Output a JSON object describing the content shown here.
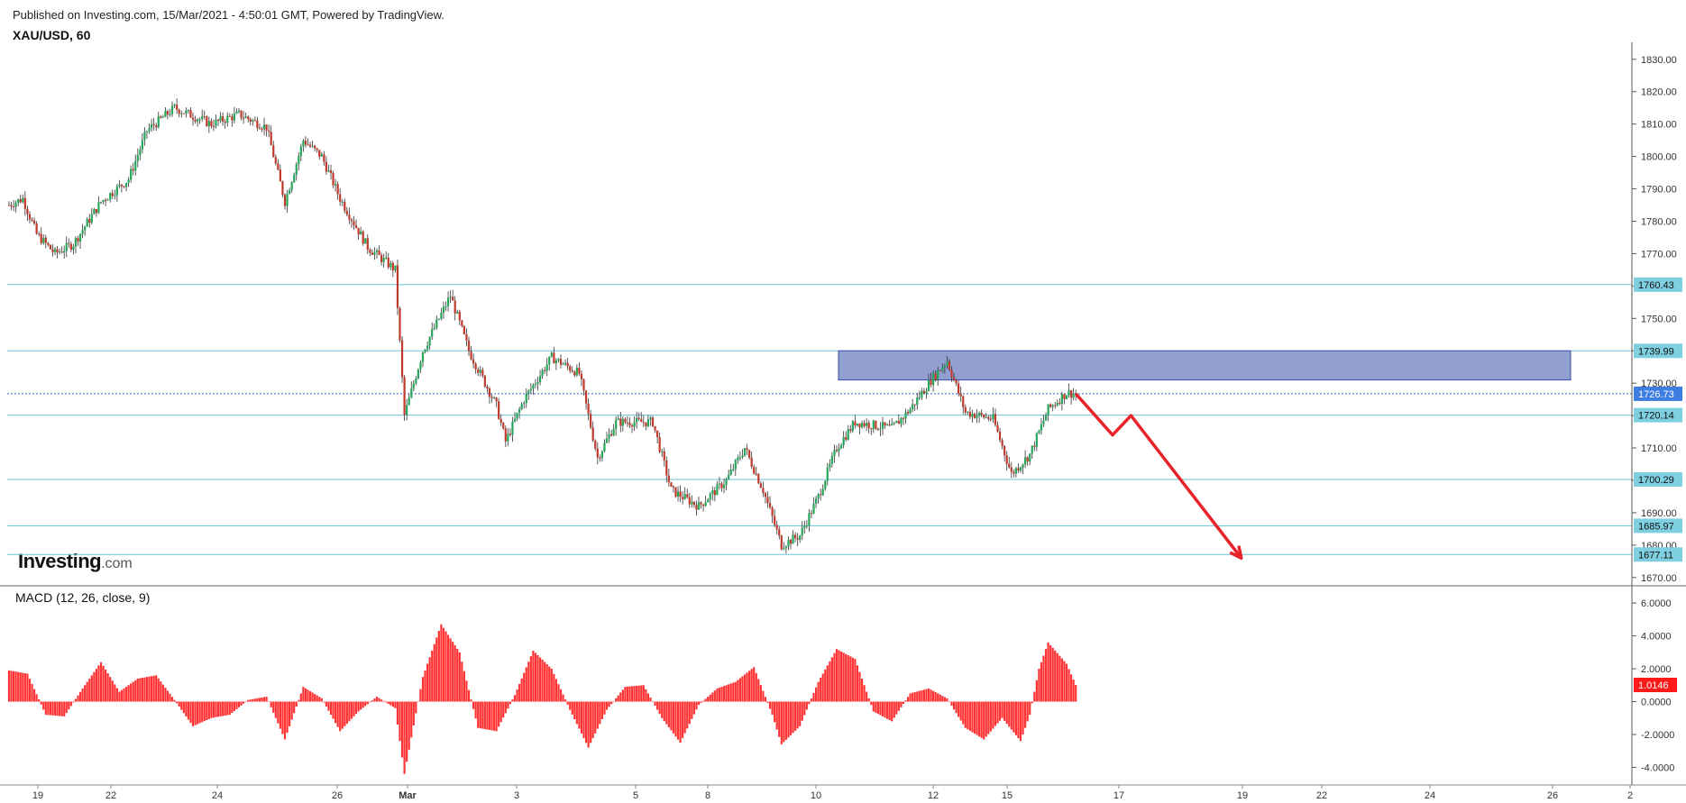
{
  "header": {
    "published": "Published on Investing.com, 15/Mar/2021 - 4:50:01 GMT, Powered by TradingView.",
    "symbol": "XAU/USD, 60"
  },
  "logo": {
    "main": "Investing",
    "suffix": ".com"
  },
  "macd_label": "MACD (12, 26, close, 9)",
  "colors": {
    "up": "#26a65b",
    "down": "#c0392b",
    "level_line": "#6cc3d5",
    "level_tag": "#7ecfe0",
    "current_tag": "#3d7ee0",
    "zone_fill": "#7f8fc9",
    "arrow": "#e8232a",
    "histogram": "#ff3333"
  },
  "chart_data": [
    {
      "type": "candlestick",
      "title": "XAU/USD, 60",
      "y_axis_ticks": [
        "1830.00",
        "1820.00",
        "1810.00",
        "1800.00",
        "1790.00",
        "1780.00",
        "1770.00",
        "1760.00",
        "1750.00",
        "1740.00",
        "1730.00",
        "1720.00",
        "1710.00",
        "1700.00",
        "1690.00",
        "1680.00",
        "1670.00"
      ],
      "x_axis_ticks": [
        "19",
        "22",
        "24",
        "26",
        "Mar",
        "3",
        "5",
        "8",
        "10",
        "12",
        "15",
        "17",
        "19",
        "22",
        "24",
        "26",
        "2"
      ],
      "ylim": [
        1668,
        1833
      ],
      "price_path": [
        {
          "x": 0,
          "y": 1785
        },
        {
          "x": 1.5,
          "y": 1787
        },
        {
          "x": 3,
          "y": 1776
        },
        {
          "x": 5,
          "y": 1770
        },
        {
          "x": 7,
          "y": 1773
        },
        {
          "x": 10,
          "y": 1786
        },
        {
          "x": 13,
          "y": 1793
        },
        {
          "x": 15,
          "y": 1808
        },
        {
          "x": 18,
          "y": 1815
        },
        {
          "x": 22,
          "y": 1810
        },
        {
          "x": 25,
          "y": 1813
        },
        {
          "x": 28,
          "y": 1809
        },
        {
          "x": 30,
          "y": 1786
        },
        {
          "x": 32,
          "y": 1805
        },
        {
          "x": 34,
          "y": 1800
        },
        {
          "x": 36,
          "y": 1787
        },
        {
          "x": 39,
          "y": 1772
        },
        {
          "x": 42,
          "y": 1765
        },
        {
          "x": 43,
          "y": 1720
        },
        {
          "x": 45,
          "y": 1740
        },
        {
          "x": 48,
          "y": 1757
        },
        {
          "x": 50,
          "y": 1740
        },
        {
          "x": 53,
          "y": 1723
        },
        {
          "x": 54,
          "y": 1712
        },
        {
          "x": 56,
          "y": 1725
        },
        {
          "x": 59,
          "y": 1738
        },
        {
          "x": 62,
          "y": 1733
        },
        {
          "x": 64,
          "y": 1707
        },
        {
          "x": 66,
          "y": 1718
        },
        {
          "x": 70,
          "y": 1718
        },
        {
          "x": 72,
          "y": 1697
        },
        {
          "x": 75,
          "y": 1692
        },
        {
          "x": 78,
          "y": 1700
        },
        {
          "x": 80,
          "y": 1710
        },
        {
          "x": 82,
          "y": 1697
        },
        {
          "x": 84,
          "y": 1680
        },
        {
          "x": 86,
          "y": 1683
        },
        {
          "x": 88,
          "y": 1695
        },
        {
          "x": 90,
          "y": 1710
        },
        {
          "x": 92,
          "y": 1718
        },
        {
          "x": 96,
          "y": 1716
        },
        {
          "x": 98,
          "y": 1722
        },
        {
          "x": 100,
          "y": 1730
        },
        {
          "x": 102,
          "y": 1737
        },
        {
          "x": 104,
          "y": 1721
        },
        {
          "x": 107,
          "y": 1719
        },
        {
          "x": 109,
          "y": 1702
        },
        {
          "x": 111,
          "y": 1708
        },
        {
          "x": 113,
          "y": 1722
        },
        {
          "x": 115,
          "y": 1727
        },
        {
          "x": 116,
          "y": 1726.73
        }
      ],
      "levels": [
        {
          "value": 1760.43,
          "label": "1760.43"
        },
        {
          "value": 1739.99,
          "label": "1739.99"
        },
        {
          "value": 1720.14,
          "label": "1720.14"
        },
        {
          "value": 1700.29,
          "label": "1700.29"
        },
        {
          "value": 1685.97,
          "label": "1685.97"
        },
        {
          "value": 1677.11,
          "label": "1677.11"
        }
      ],
      "current_price": {
        "value": 1726.73,
        "label": "1726.73"
      },
      "resistance_zone": {
        "from": 1731,
        "to": 1740
      },
      "projection_path": [
        {
          "x": 116,
          "y": 1726.73
        },
        {
          "x": 120,
          "y": 1714
        },
        {
          "x": 122,
          "y": 1720
        },
        {
          "x": 134,
          "y": 1676
        }
      ]
    },
    {
      "type": "bar",
      "title": "MACD (12, 26, close, 9)",
      "y_axis_ticks": [
        "6.0000",
        "4.0000",
        "2.0000",
        "0.0000",
        "-2.0000",
        "-4.0000"
      ],
      "ylim": [
        -4.8,
        6.5
      ],
      "current_value": {
        "value": 1.0146,
        "label": "1.0146"
      },
      "histogram_path": [
        {
          "x": 0,
          "y": 1.9
        },
        {
          "x": 2,
          "y": 1.7
        },
        {
          "x": 4,
          "y": -0.8
        },
        {
          "x": 6,
          "y": -0.9
        },
        {
          "x": 8,
          "y": 0.8
        },
        {
          "x": 10,
          "y": 2.4
        },
        {
          "x": 12,
          "y": 0.6
        },
        {
          "x": 14,
          "y": 1.4
        },
        {
          "x": 16,
          "y": 1.6
        },
        {
          "x": 18,
          "y": 0.1
        },
        {
          "x": 20,
          "y": -1.5
        },
        {
          "x": 22,
          "y": -1.0
        },
        {
          "x": 24,
          "y": -0.8
        },
        {
          "x": 26,
          "y": 0.1
        },
        {
          "x": 28,
          "y": 0.3
        },
        {
          "x": 30,
          "y": -2.3
        },
        {
          "x": 32,
          "y": 0.9
        },
        {
          "x": 34,
          "y": 0.2
        },
        {
          "x": 36,
          "y": -1.8
        },
        {
          "x": 38,
          "y": -0.6
        },
        {
          "x": 40,
          "y": 0.3
        },
        {
          "x": 42,
          "y": -0.4
        },
        {
          "x": 43,
          "y": -4.4
        },
        {
          "x": 45,
          "y": 1.5
        },
        {
          "x": 47,
          "y": 4.7
        },
        {
          "x": 49,
          "y": 3.0
        },
        {
          "x": 51,
          "y": -1.6
        },
        {
          "x": 53,
          "y": -1.8
        },
        {
          "x": 55,
          "y": 0.4
        },
        {
          "x": 57,
          "y": 3.1
        },
        {
          "x": 59,
          "y": 2.0
        },
        {
          "x": 61,
          "y": -0.5
        },
        {
          "x": 63,
          "y": -2.8
        },
        {
          "x": 65,
          "y": -0.5
        },
        {
          "x": 67,
          "y": 0.9
        },
        {
          "x": 69,
          "y": 1.0
        },
        {
          "x": 71,
          "y": -1.0
        },
        {
          "x": 73,
          "y": -2.5
        },
        {
          "x": 75,
          "y": -0.2
        },
        {
          "x": 77,
          "y": 0.8
        },
        {
          "x": 79,
          "y": 1.2
        },
        {
          "x": 81,
          "y": 2.1
        },
        {
          "x": 83,
          "y": -0.8
        },
        {
          "x": 84,
          "y": -2.6
        },
        {
          "x": 86,
          "y": -1.5
        },
        {
          "x": 88,
          "y": 1.2
        },
        {
          "x": 90,
          "y": 3.2
        },
        {
          "x": 92,
          "y": 2.6
        },
        {
          "x": 94,
          "y": -0.6
        },
        {
          "x": 96,
          "y": -1.2
        },
        {
          "x": 98,
          "y": 0.5
        },
        {
          "x": 100,
          "y": 0.8
        },
        {
          "x": 102,
          "y": 0.2
        },
        {
          "x": 104,
          "y": -1.6
        },
        {
          "x": 106,
          "y": -2.3
        },
        {
          "x": 108,
          "y": -1.0
        },
        {
          "x": 110,
          "y": -2.4
        },
        {
          "x": 111,
          "y": -0.8
        },
        {
          "x": 112,
          "y": 2.0
        },
        {
          "x": 113,
          "y": 3.6
        },
        {
          "x": 115,
          "y": 2.3
        },
        {
          "x": 116,
          "y": 1.0146
        }
      ]
    }
  ]
}
